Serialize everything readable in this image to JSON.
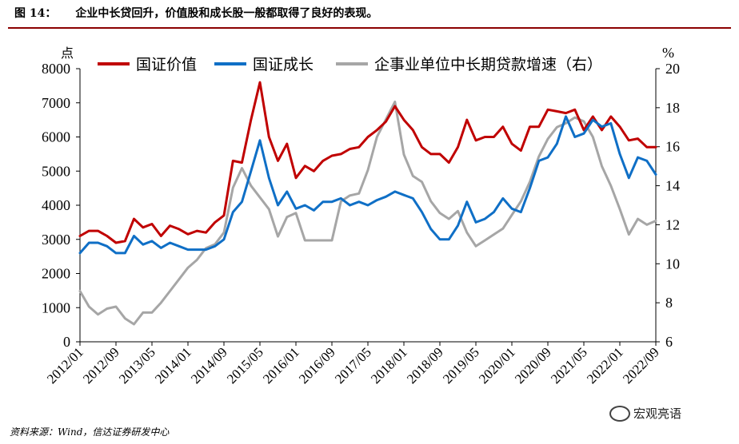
{
  "header": {
    "figure_no": "图 14：",
    "title": "企业中长贷回升，价值股和成长股一般都取得了良好的表现。"
  },
  "footer": {
    "source": "资料来源：Wind，信达证券研发中心"
  },
  "watermark": {
    "text": "宏观亮语",
    "logo": "wechat-icon"
  },
  "colors": {
    "series_value": "#c00000",
    "series_growth": "#0f6fc6",
    "series_loan": "#a6a6a6",
    "topline": "#8b0000"
  },
  "chart_data": {
    "type": "line",
    "x_labels": [
      "2012/01",
      "2012/09",
      "2013/05",
      "2014/01",
      "2014/09",
      "2015/05",
      "2016/01",
      "2016/09",
      "2017/05",
      "2018/01",
      "2018/09",
      "2019/05",
      "2020/01",
      "2020/09",
      "2021/05",
      "2022/01",
      "2022/09"
    ],
    "left_axis": {
      "unit": "点",
      "min": 0,
      "max": 8000,
      "ticks": [
        0,
        1000,
        2000,
        3000,
        4000,
        5000,
        6000,
        7000,
        8000
      ]
    },
    "right_axis": {
      "unit": "%",
      "min": 6,
      "max": 20,
      "ticks": [
        6,
        8,
        10,
        12,
        14,
        16,
        18,
        20
      ]
    },
    "legend": {
      "position": "top"
    },
    "grid": false,
    "series": [
      {
        "name": "国证价值",
        "axis": "left",
        "color": "#c00000",
        "values": [
          3100,
          3250,
          3250,
          3100,
          2900,
          2950,
          3600,
          3350,
          3450,
          3100,
          3400,
          3300,
          3150,
          3250,
          3200,
          3500,
          3700,
          5300,
          5250,
          6500,
          7600,
          6000,
          5300,
          5800,
          4800,
          5150,
          5000,
          5300,
          5450,
          5500,
          5650,
          5700,
          6000,
          6200,
          6450,
          6900,
          6500,
          6200,
          5700,
          5500,
          5500,
          5250,
          5700,
          6500,
          5900,
          6000,
          6000,
          6300,
          5800,
          5600,
          6300,
          6300,
          6800,
          6750,
          6700,
          6800,
          6200,
          6600,
          6200,
          6600,
          6300,
          5900,
          5950,
          5700,
          5700
        ]
      },
      {
        "name": "国证成长",
        "axis": "left",
        "color": "#0f6fc6",
        "values": [
          2600,
          2900,
          2900,
          2800,
          2600,
          2600,
          3100,
          2850,
          2950,
          2750,
          2900,
          2800,
          2700,
          2700,
          2700,
          2800,
          3000,
          3800,
          4100,
          5000,
          5900,
          4800,
          4000,
          4400,
          3900,
          4000,
          3850,
          4100,
          4100,
          4200,
          4000,
          4100,
          4000,
          4150,
          4250,
          4400,
          4300,
          4200,
          3800,
          3300,
          3000,
          3000,
          3400,
          4100,
          3500,
          3600,
          3800,
          4200,
          3900,
          3800,
          4500,
          5300,
          5400,
          5800,
          6600,
          6000,
          6100,
          6500,
          6300,
          6400,
          5500,
          4800,
          5400,
          5300,
          4900
        ]
      },
      {
        "name": "企事业单位中长期贷款增速（右）",
        "axis": "right",
        "color": "#a6a6a6",
        "values": [
          8.6,
          7.8,
          7.4,
          7.7,
          7.8,
          7.2,
          6.9,
          7.5,
          7.5,
          8.0,
          8.6,
          9.2,
          9.8,
          10.2,
          10.8,
          11.0,
          11.6,
          13.9,
          14.9,
          14.0,
          13.4,
          12.8,
          11.4,
          12.4,
          12.6,
          11.2,
          11.2,
          11.2,
          11.2,
          13.2,
          13.5,
          13.6,
          14.8,
          16.5,
          17.4,
          18.3,
          15.6,
          14.5,
          14.2,
          13.2,
          12.6,
          12.3,
          12.7,
          11.6,
          10.9,
          11.2,
          11.5,
          11.8,
          12.5,
          13.2,
          14.2,
          15.5,
          16.4,
          17.0,
          17.2,
          17.5,
          17.3,
          16.5,
          15.0,
          14.0,
          12.8,
          11.5,
          12.3,
          12.0,
          12.2
        ]
      }
    ]
  }
}
